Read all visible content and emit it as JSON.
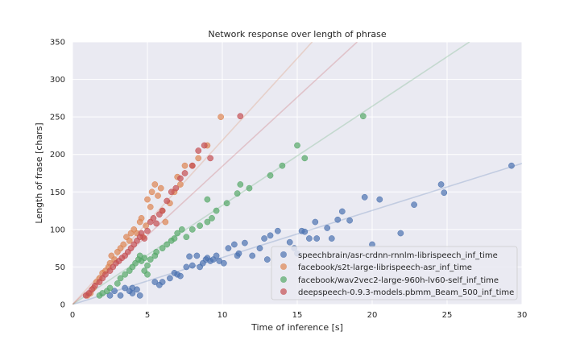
{
  "chart_data": {
    "type": "scatter",
    "title": "Network response over length of phrase",
    "xlabel": "Time of inference [s]",
    "ylabel": "Length of frase [chars]",
    "xlim": [
      0,
      30
    ],
    "ylim": [
      0,
      350
    ],
    "xticks": [
      0,
      5,
      10,
      15,
      20,
      25,
      30
    ],
    "yticks": [
      0,
      50,
      100,
      150,
      200,
      250,
      300,
      350
    ],
    "grid": true,
    "legend_position": "lower-right",
    "series": [
      {
        "name": "speechbrain/asr-crdnn-rnnlm-librispeech_inf_time",
        "color": "#4c72b0",
        "trend": {
          "x0": 0,
          "y0": 0,
          "x1": 30,
          "y1": 188
        },
        "points": [
          [
            2.5,
            12
          ],
          [
            3.2,
            12
          ],
          [
            2.8,
            18
          ],
          [
            3.5,
            22
          ],
          [
            4.0,
            15
          ],
          [
            4.3,
            20
          ],
          [
            4.0,
            22
          ],
          [
            3.8,
            18
          ],
          [
            4.5,
            12
          ],
          [
            5.5,
            30
          ],
          [
            5.8,
            26
          ],
          [
            6.0,
            30
          ],
          [
            6.5,
            35
          ],
          [
            6.8,
            42
          ],
          [
            7.0,
            40
          ],
          [
            7.2,
            38
          ],
          [
            7.6,
            50
          ],
          [
            7.8,
            64
          ],
          [
            8.0,
            52
          ],
          [
            8.3,
            65
          ],
          [
            8.5,
            50
          ],
          [
            8.7,
            55
          ],
          [
            8.9,
            60
          ],
          [
            9.0,
            62
          ],
          [
            9.2,
            58
          ],
          [
            9.4,
            60
          ],
          [
            9.6,
            65
          ],
          [
            9.8,
            58
          ],
          [
            10.1,
            55
          ],
          [
            10.4,
            75
          ],
          [
            10.8,
            80
          ],
          [
            11.0,
            65
          ],
          [
            11.1,
            68
          ],
          [
            11.5,
            82
          ],
          [
            12.0,
            65
          ],
          [
            12.5,
            75
          ],
          [
            12.8,
            88
          ],
          [
            13.0,
            60
          ],
          [
            13.2,
            92
          ],
          [
            13.7,
            98
          ],
          [
            14.5,
            83
          ],
          [
            14.8,
            75
          ],
          [
            15.0,
            68
          ],
          [
            15.3,
            98
          ],
          [
            15.5,
            97
          ],
          [
            15.8,
            88
          ],
          [
            16.2,
            110
          ],
          [
            16.3,
            88
          ],
          [
            17.0,
            102
          ],
          [
            17.3,
            88
          ],
          [
            17.7,
            113
          ],
          [
            18.0,
            124
          ],
          [
            18.5,
            112
          ],
          [
            19.5,
            143
          ],
          [
            20.0,
            80
          ],
          [
            20.5,
            140
          ],
          [
            21.9,
            95
          ],
          [
            22.8,
            133
          ],
          [
            24.6,
            160
          ],
          [
            24.8,
            149
          ],
          [
            29.3,
            185
          ]
        ]
      },
      {
        "name": "facebook/s2t-large-librispeech-asr_inf_time",
        "color": "#dd8452",
        "trend": {
          "x0": 0,
          "y0": 0,
          "x1": 16,
          "y1": 350
        },
        "points": [
          [
            1.0,
            12
          ],
          [
            1.2,
            15
          ],
          [
            1.4,
            22
          ],
          [
            1.6,
            30
          ],
          [
            1.8,
            35
          ],
          [
            2.0,
            42
          ],
          [
            2.2,
            45
          ],
          [
            2.4,
            50
          ],
          [
            2.5,
            55
          ],
          [
            2.6,
            65
          ],
          [
            2.8,
            60
          ],
          [
            3.0,
            70
          ],
          [
            3.2,
            75
          ],
          [
            3.4,
            80
          ],
          [
            3.6,
            90
          ],
          [
            3.8,
            85
          ],
          [
            3.9,
            95
          ],
          [
            4.1,
            100
          ],
          [
            4.3,
            95
          ],
          [
            4.5,
            110
          ],
          [
            4.6,
            115
          ],
          [
            4.7,
            90
          ],
          [
            4.9,
            105
          ],
          [
            5.0,
            140
          ],
          [
            5.2,
            130
          ],
          [
            5.3,
            150
          ],
          [
            5.5,
            160
          ],
          [
            5.7,
            145
          ],
          [
            5.9,
            155
          ],
          [
            6.0,
            125
          ],
          [
            6.2,
            110
          ],
          [
            6.5,
            135
          ],
          [
            6.8,
            150
          ],
          [
            7.0,
            170
          ],
          [
            7.2,
            160
          ],
          [
            7.5,
            185
          ],
          [
            8.0,
            185
          ],
          [
            8.4,
            195
          ],
          [
            9.0,
            212
          ],
          [
            9.9,
            250
          ]
        ]
      },
      {
        "name": "facebook/wav2vec2-large-960h-lv60-self_inf_time",
        "color": "#55a868",
        "trend": {
          "x0": 0,
          "y0": 0,
          "x1": 26.5,
          "y1": 350
        },
        "points": [
          [
            1.8,
            12
          ],
          [
            2.0,
            15
          ],
          [
            2.3,
            18
          ],
          [
            2.5,
            22
          ],
          [
            3.0,
            28
          ],
          [
            3.2,
            35
          ],
          [
            3.5,
            40
          ],
          [
            3.8,
            45
          ],
          [
            4.0,
            50
          ],
          [
            4.2,
            55
          ],
          [
            4.4,
            60
          ],
          [
            4.5,
            65
          ],
          [
            4.6,
            58
          ],
          [
            4.8,
            62
          ],
          [
            5.0,
            52
          ],
          [
            5.2,
            60
          ],
          [
            5.5,
            65
          ],
          [
            5.0,
            40
          ],
          [
            4.8,
            45
          ],
          [
            5.6,
            70
          ],
          [
            6.0,
            75
          ],
          [
            6.3,
            80
          ],
          [
            6.6,
            85
          ],
          [
            6.8,
            88
          ],
          [
            7.0,
            95
          ],
          [
            7.3,
            100
          ],
          [
            7.6,
            90
          ],
          [
            8.0,
            100
          ],
          [
            8.5,
            105
          ],
          [
            9.0,
            110
          ],
          [
            9.0,
            140
          ],
          [
            9.3,
            115
          ],
          [
            9.6,
            125
          ],
          [
            10.3,
            135
          ],
          [
            11.0,
            148
          ],
          [
            11.2,
            160
          ],
          [
            11.8,
            155
          ],
          [
            13.2,
            172
          ],
          [
            14.0,
            185
          ],
          [
            15.0,
            212
          ],
          [
            15.5,
            195
          ],
          [
            19.4,
            251
          ]
        ]
      },
      {
        "name": "deepspeech-0.9.3-models.pbmm_Beam_500_inf_time",
        "color": "#c44e52",
        "trend": {
          "x0": 0,
          "y0": 0,
          "x1": 19,
          "y1": 350
        },
        "points": [
          [
            0.9,
            12
          ],
          [
            1.1,
            15
          ],
          [
            1.3,
            20
          ],
          [
            1.5,
            25
          ],
          [
            1.8,
            30
          ],
          [
            2.0,
            35
          ],
          [
            2.2,
            40
          ],
          [
            2.5,
            45
          ],
          [
            2.7,
            50
          ],
          [
            2.9,
            55
          ],
          [
            3.1,
            58
          ],
          [
            3.3,
            62
          ],
          [
            3.5,
            65
          ],
          [
            3.7,
            70
          ],
          [
            3.9,
            75
          ],
          [
            4.1,
            80
          ],
          [
            4.3,
            85
          ],
          [
            4.5,
            90
          ],
          [
            4.6,
            95
          ],
          [
            4.8,
            88
          ],
          [
            5.0,
            98
          ],
          [
            5.2,
            110
          ],
          [
            5.4,
            115
          ],
          [
            5.6,
            108
          ],
          [
            5.8,
            120
          ],
          [
            6.0,
            125
          ],
          [
            6.3,
            138
          ],
          [
            6.6,
            150
          ],
          [
            6.9,
            155
          ],
          [
            7.2,
            168
          ],
          [
            7.5,
            175
          ],
          [
            8.0,
            185
          ],
          [
            8.4,
            205
          ],
          [
            8.8,
            212
          ],
          [
            9.2,
            195
          ],
          [
            11.2,
            251
          ]
        ]
      }
    ]
  }
}
